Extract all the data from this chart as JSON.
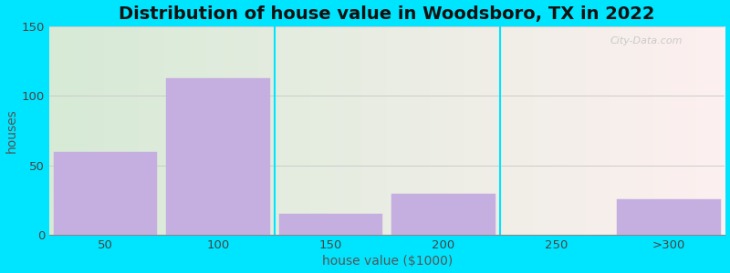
{
  "title": "Distribution of house value in Woodsboro, TX in 2022",
  "xlabel": "house value ($1000)",
  "ylabel": "houses",
  "categories": [
    "50",
    "100",
    "150",
    "200",
    "250",
    ">300"
  ],
  "values": [
    60,
    113,
    15,
    30,
    0,
    26
  ],
  "bar_color": "#c5aee0",
  "background_outer": "#00e5ff",
  "ylim": [
    0,
    150
  ],
  "yticks": [
    0,
    50,
    100,
    150
  ],
  "title_fontsize": 14,
  "label_fontsize": 10,
  "tick_fontsize": 9.5,
  "watermark": "City-Data.com",
  "grad_left": "#d6ead6",
  "grad_right": "#fdf0f0"
}
